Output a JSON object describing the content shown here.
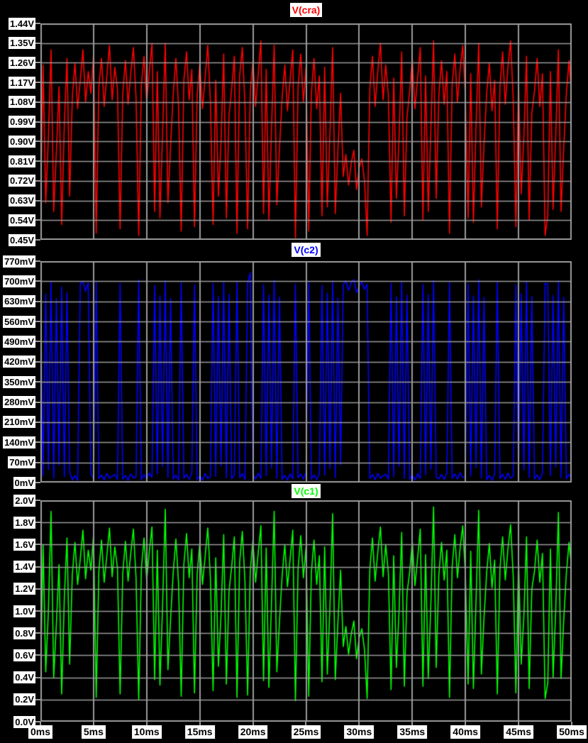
{
  "app": {
    "background_color": "#000000",
    "grid_color": "#9a9a9a",
    "label_bg_color": "#ffffff",
    "label_text_color": "#000000"
  },
  "chart_data": {
    "type": "line",
    "x_unit": "ms",
    "x_range": [
      0,
      50
    ],
    "x_ticks": [
      "0ms",
      "5ms",
      "10ms",
      "15ms",
      "20ms",
      "25ms",
      "30ms",
      "35ms",
      "40ms",
      "45ms",
      "50ms"
    ],
    "sample_interval_ms": 0.25,
    "grid": true,
    "legend_position": "title-top-center",
    "panels": [
      {
        "id": "vcra",
        "title": "V(cra)",
        "color": "#ff0000",
        "y_unit": "V",
        "y_range": [
          0.45,
          1.44
        ],
        "y_ticks": [
          "1.44V",
          "1.35V",
          "1.26V",
          "1.17V",
          "1.08V",
          "0.99V",
          "0.90V",
          "0.81V",
          "0.72V",
          "0.63V",
          "0.54V",
          "0.45V"
        ],
        "values": [
          0.55,
          1.25,
          0.62,
          0.92,
          1.32,
          0.58,
          0.85,
          1.15,
          0.52,
          0.98,
          1.28,
          0.65,
          1.1,
          1.26,
          1.05,
          1.18,
          1.32,
          1.08,
          1.22,
          1.12,
          1.3,
          0.48,
          1.15,
          1.28,
          1.06,
          1.2,
          1.34,
          1.09,
          1.24,
          1.14,
          0.5,
          1.12,
          1.27,
          1.07,
          1.21,
          1.33,
          1.1,
          0.47,
          1.16,
          1.29,
          1.08,
          1.22,
          1.35,
          0.58,
          1.22,
          0.55,
          0.95,
          1.35,
          0.62,
          0.88,
          1.12,
          1.28,
          1.06,
          0.49,
          1.18,
          1.31,
          1.09,
          1.23,
          0.51,
          1.11,
          1.26,
          1.05,
          1.19,
          1.34,
          1.08,
          0.52,
          1.18,
          0.65,
          0.9,
          1.3,
          0.55,
          1.02,
          1.14,
          1.29,
          0.48,
          1.2,
          1.33,
          1.07,
          0.5,
          1.13,
          1.27,
          1.06,
          1.21,
          1.36,
          0.57,
          1.23,
          0.54,
          0.96,
          1.34,
          0.61,
          0.87,
          1.1,
          1.25,
          1.04,
          1.18,
          1.32,
          0.46,
          1.15,
          1.3,
          1.08,
          1.24,
          0.49,
          1.12,
          1.28,
          1.05,
          1.2,
          0.56,
          1.24,
          0.6,
          0.94,
          1.33,
          0.57,
          0.86,
          1.12,
          0.74,
          0.84,
          0.7,
          0.8,
          0.86,
          0.68,
          0.78,
          0.82,
          0.72,
          0.47,
          1.14,
          1.29,
          1.06,
          1.22,
          1.35,
          1.09,
          1.25,
          1.11,
          0.53,
          1.19,
          0.64,
          0.91,
          1.31,
          0.56,
          1.01,
          1.13,
          1.28,
          1.05,
          1.19,
          1.33,
          0.54,
          1.2,
          0.58,
          0.96,
          1.36,
          0.64,
          1.11,
          1.27,
          1.07,
          1.22,
          0.48,
          1.16,
          1.3,
          1.08,
          1.23,
          1.34,
          1.1,
          0.55,
          1.21,
          0.53,
          0.97,
          1.35,
          0.6,
          0.89,
          1.12,
          1.26,
          1.04,
          1.18,
          0.5,
          1.15,
          1.31,
          1.07,
          1.24,
          1.36,
          1.09,
          0.51,
          1.17,
          0.66,
          0.92,
          1.29,
          0.54,
          1.03,
          1.13,
          1.28,
          1.06,
          1.21,
          0.47,
          0.56,
          1.22,
          0.59,
          0.93,
          1.32,
          0.58,
          0.87,
          1.12,
          1.27,
          1.1
        ]
      },
      {
        "id": "vc2",
        "title": "V(c2)",
        "color": "#0000ff",
        "y_unit": "mV",
        "y_range": [
          0,
          770
        ],
        "y_ticks": [
          "770mV",
          "700mV",
          "630mV",
          "560mV",
          "490mV",
          "420mV",
          "350mV",
          "280mV",
          "210mV",
          "140mV",
          "70mV",
          "0mV"
        ],
        "values": [
          690,
          25,
          655,
          45,
          700,
          15,
          640,
          60,
          680,
          20,
          660,
          35,
          10,
          24,
          8,
          690,
          700,
          665,
          695,
          30,
          12,
          698,
          14,
          26,
          9,
          32,
          15,
          22,
          28,
          11,
          692,
          12,
          25,
          8,
          30,
          16,
          20,
          705,
          10,
          28,
          13,
          33,
          18,
          685,
          30,
          650,
          55,
          702,
          18,
          640,
          12,
          26,
          9,
          695,
          15,
          29,
          11,
          34,
          688,
          10,
          24,
          8,
          31,
          14,
          21,
          692,
          22,
          648,
          58,
          698,
          16,
          655,
          13,
          27,
          700,
          17,
          31,
          10,
          694,
          730,
          28,
          12,
          33,
          15,
          688,
          24,
          652,
          50,
          704,
          14,
          645,
          11,
          25,
          9,
          30,
          13,
          690,
          16,
          30,
          12,
          35,
          697,
          12,
          27,
          10,
          31,
          686,
          26,
          658,
          48,
          701,
          17,
          642,
          62,
          688,
          702,
          668,
          695,
          706,
          660,
          684,
          698,
          672,
          690,
          14,
          28,
          10,
          32,
          16,
          23,
          29,
          12,
          693,
          21,
          646,
          56,
          699,
          15,
          652,
          11,
          26,
          9,
          31,
          14,
          689,
          27,
          654,
          46,
          703,
          19,
          13,
          28,
          11,
          33,
          696,
          15,
          30,
          12,
          34,
          17,
          24,
          691,
          23,
          649,
          52,
          705,
          16,
          643,
          10,
          25,
          8,
          29,
          699,
          14,
          29,
          11,
          33,
          16,
          22,
          687,
          28,
          656,
          44,
          700,
          18,
          647,
          12,
          27,
          10,
          32,
          693,
          690,
          24,
          651,
          54,
          702,
          17,
          644,
          13,
          28,
          15
        ]
      },
      {
        "id": "vc1",
        "title": "V(c1)",
        "color": "#00ff00",
        "y_unit": "V",
        "y_range": [
          0,
          2.0
        ],
        "y_ticks": [
          "2.0V",
          "1.8V",
          "1.6V",
          "1.4V",
          "1.2V",
          "1.0V",
          "0.8V",
          "0.6V",
          "0.4V",
          "0.2V",
          "0.0V"
        ],
        "values": [
          0.35,
          1.6,
          0.45,
          1.0,
          1.9,
          0.4,
          0.88,
          1.42,
          0.25,
          1.12,
          1.66,
          0.52,
          1.33,
          1.62,
          1.24,
          1.47,
          1.73,
          1.29,
          1.55,
          1.37,
          1.69,
          0.22,
          1.36,
          1.64,
          1.26,
          1.5,
          1.75,
          1.31,
          1.58,
          1.39,
          0.25,
          1.34,
          1.63,
          1.27,
          1.52,
          1.74,
          1.3,
          0.2,
          1.38,
          1.66,
          1.28,
          1.54,
          1.76,
          0.38,
          1.55,
          0.33,
          1.06,
          1.92,
          0.47,
          0.93,
          1.35,
          1.65,
          1.25,
          0.23,
          1.42,
          1.7,
          1.3,
          1.56,
          0.26,
          1.33,
          1.62,
          1.24,
          1.49,
          1.75,
          1.29,
          0.28,
          1.48,
          0.5,
          0.97,
          1.69,
          0.34,
          1.18,
          1.4,
          1.67,
          0.22,
          1.44,
          1.72,
          1.27,
          0.24,
          1.36,
          1.64,
          1.26,
          1.53,
          1.77,
          0.37,
          1.57,
          0.31,
          1.08,
          1.9,
          0.45,
          0.91,
          1.32,
          1.6,
          1.22,
          1.47,
          1.73,
          0.19,
          1.38,
          1.68,
          1.3,
          1.58,
          0.23,
          1.35,
          1.64,
          1.24,
          1.5,
          0.36,
          1.58,
          0.43,
          1.04,
          1.88,
          0.38,
          0.9,
          1.37,
          0.68,
          0.86,
          0.61,
          0.79,
          0.91,
          0.57,
          0.76,
          0.84,
          0.65,
          0.21,
          1.37,
          1.66,
          1.27,
          1.53,
          1.76,
          1.31,
          1.6,
          1.34,
          0.29,
          1.5,
          0.49,
          0.99,
          1.71,
          0.32,
          1.16,
          1.35,
          1.63,
          1.23,
          1.48,
          1.74,
          0.32,
          1.51,
          0.39,
          1.08,
          1.94,
          0.49,
          1.33,
          1.62,
          1.28,
          1.55,
          0.22,
          1.4,
          1.69,
          1.3,
          1.57,
          1.77,
          1.32,
          0.34,
          1.54,
          0.3,
          1.1,
          1.91,
          0.43,
          0.94,
          1.35,
          1.61,
          1.21,
          1.46,
          0.25,
          1.38,
          1.67,
          1.28,
          1.56,
          1.78,
          1.31,
          0.26,
          1.46,
          0.52,
          0.95,
          1.67,
          0.3,
          1.2,
          1.36,
          1.64,
          1.26,
          1.52,
          0.21,
          0.35,
          1.56,
          0.4,
          1.02,
          1.89,
          0.39,
          0.92,
          1.34,
          1.62,
          1.38
        ]
      }
    ]
  }
}
